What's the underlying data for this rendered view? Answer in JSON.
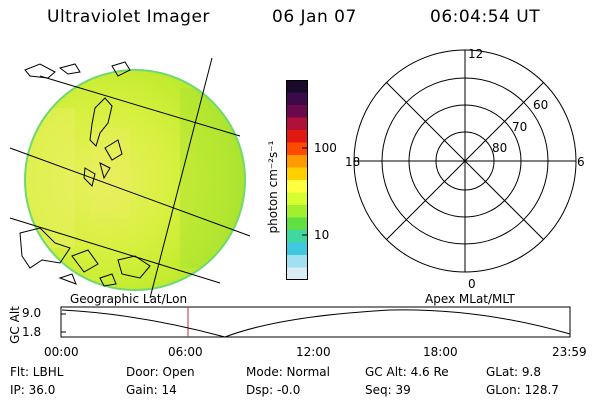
{
  "header": {
    "title": "Ultraviolet Imager",
    "date": "06 Jan 07",
    "time": "06:04:54 UT"
  },
  "colorbar": {
    "unit_label": "photon cm⁻²s⁻¹",
    "tick_high": "100",
    "tick_low": "10",
    "colors": [
      "#1a0a2a",
      "#3a0a4a",
      "#6a0a4a",
      "#b0103a",
      "#e01a10",
      "#ff4a00",
      "#ff9a00",
      "#ffd000",
      "#ffff40",
      "#d8ff30",
      "#a0f030",
      "#60e040",
      "#40d8a0",
      "#40c8e0",
      "#a0e0f0",
      "#dcecf4"
    ]
  },
  "geo_image": {
    "label": "Geographic Lat/Lon"
  },
  "polar": {
    "label": "Apex MLat/MLT",
    "mlt_labels": {
      "top": "12",
      "bottom": "0",
      "left": "18",
      "right": "6"
    },
    "lat_labels": [
      "60",
      "70",
      "80"
    ]
  },
  "altitude_plot": {
    "ylabel": "GC Alt",
    "y_ticks": [
      "9.0",
      "1.8"
    ],
    "x_ticks": [
      "00:00",
      "06:00",
      "12:00",
      "18:00",
      "23:59"
    ],
    "marker_time": "06:04:54",
    "marker_color": "#c03030"
  },
  "status": {
    "row1": {
      "flt": "Flt: LBHL",
      "door": "Door: Open",
      "mode": "Mode: Normal",
      "gcalt": "GC Alt: 4.6 Re",
      "glat": "GLat:  9.8"
    },
    "row2": {
      "ip": "IP: 36.0",
      "gain": "Gain: 14",
      "dsp": "Dsp:   -0.0",
      "seq": "Seq: 39",
      "glon": "GLon: 128.7"
    }
  }
}
